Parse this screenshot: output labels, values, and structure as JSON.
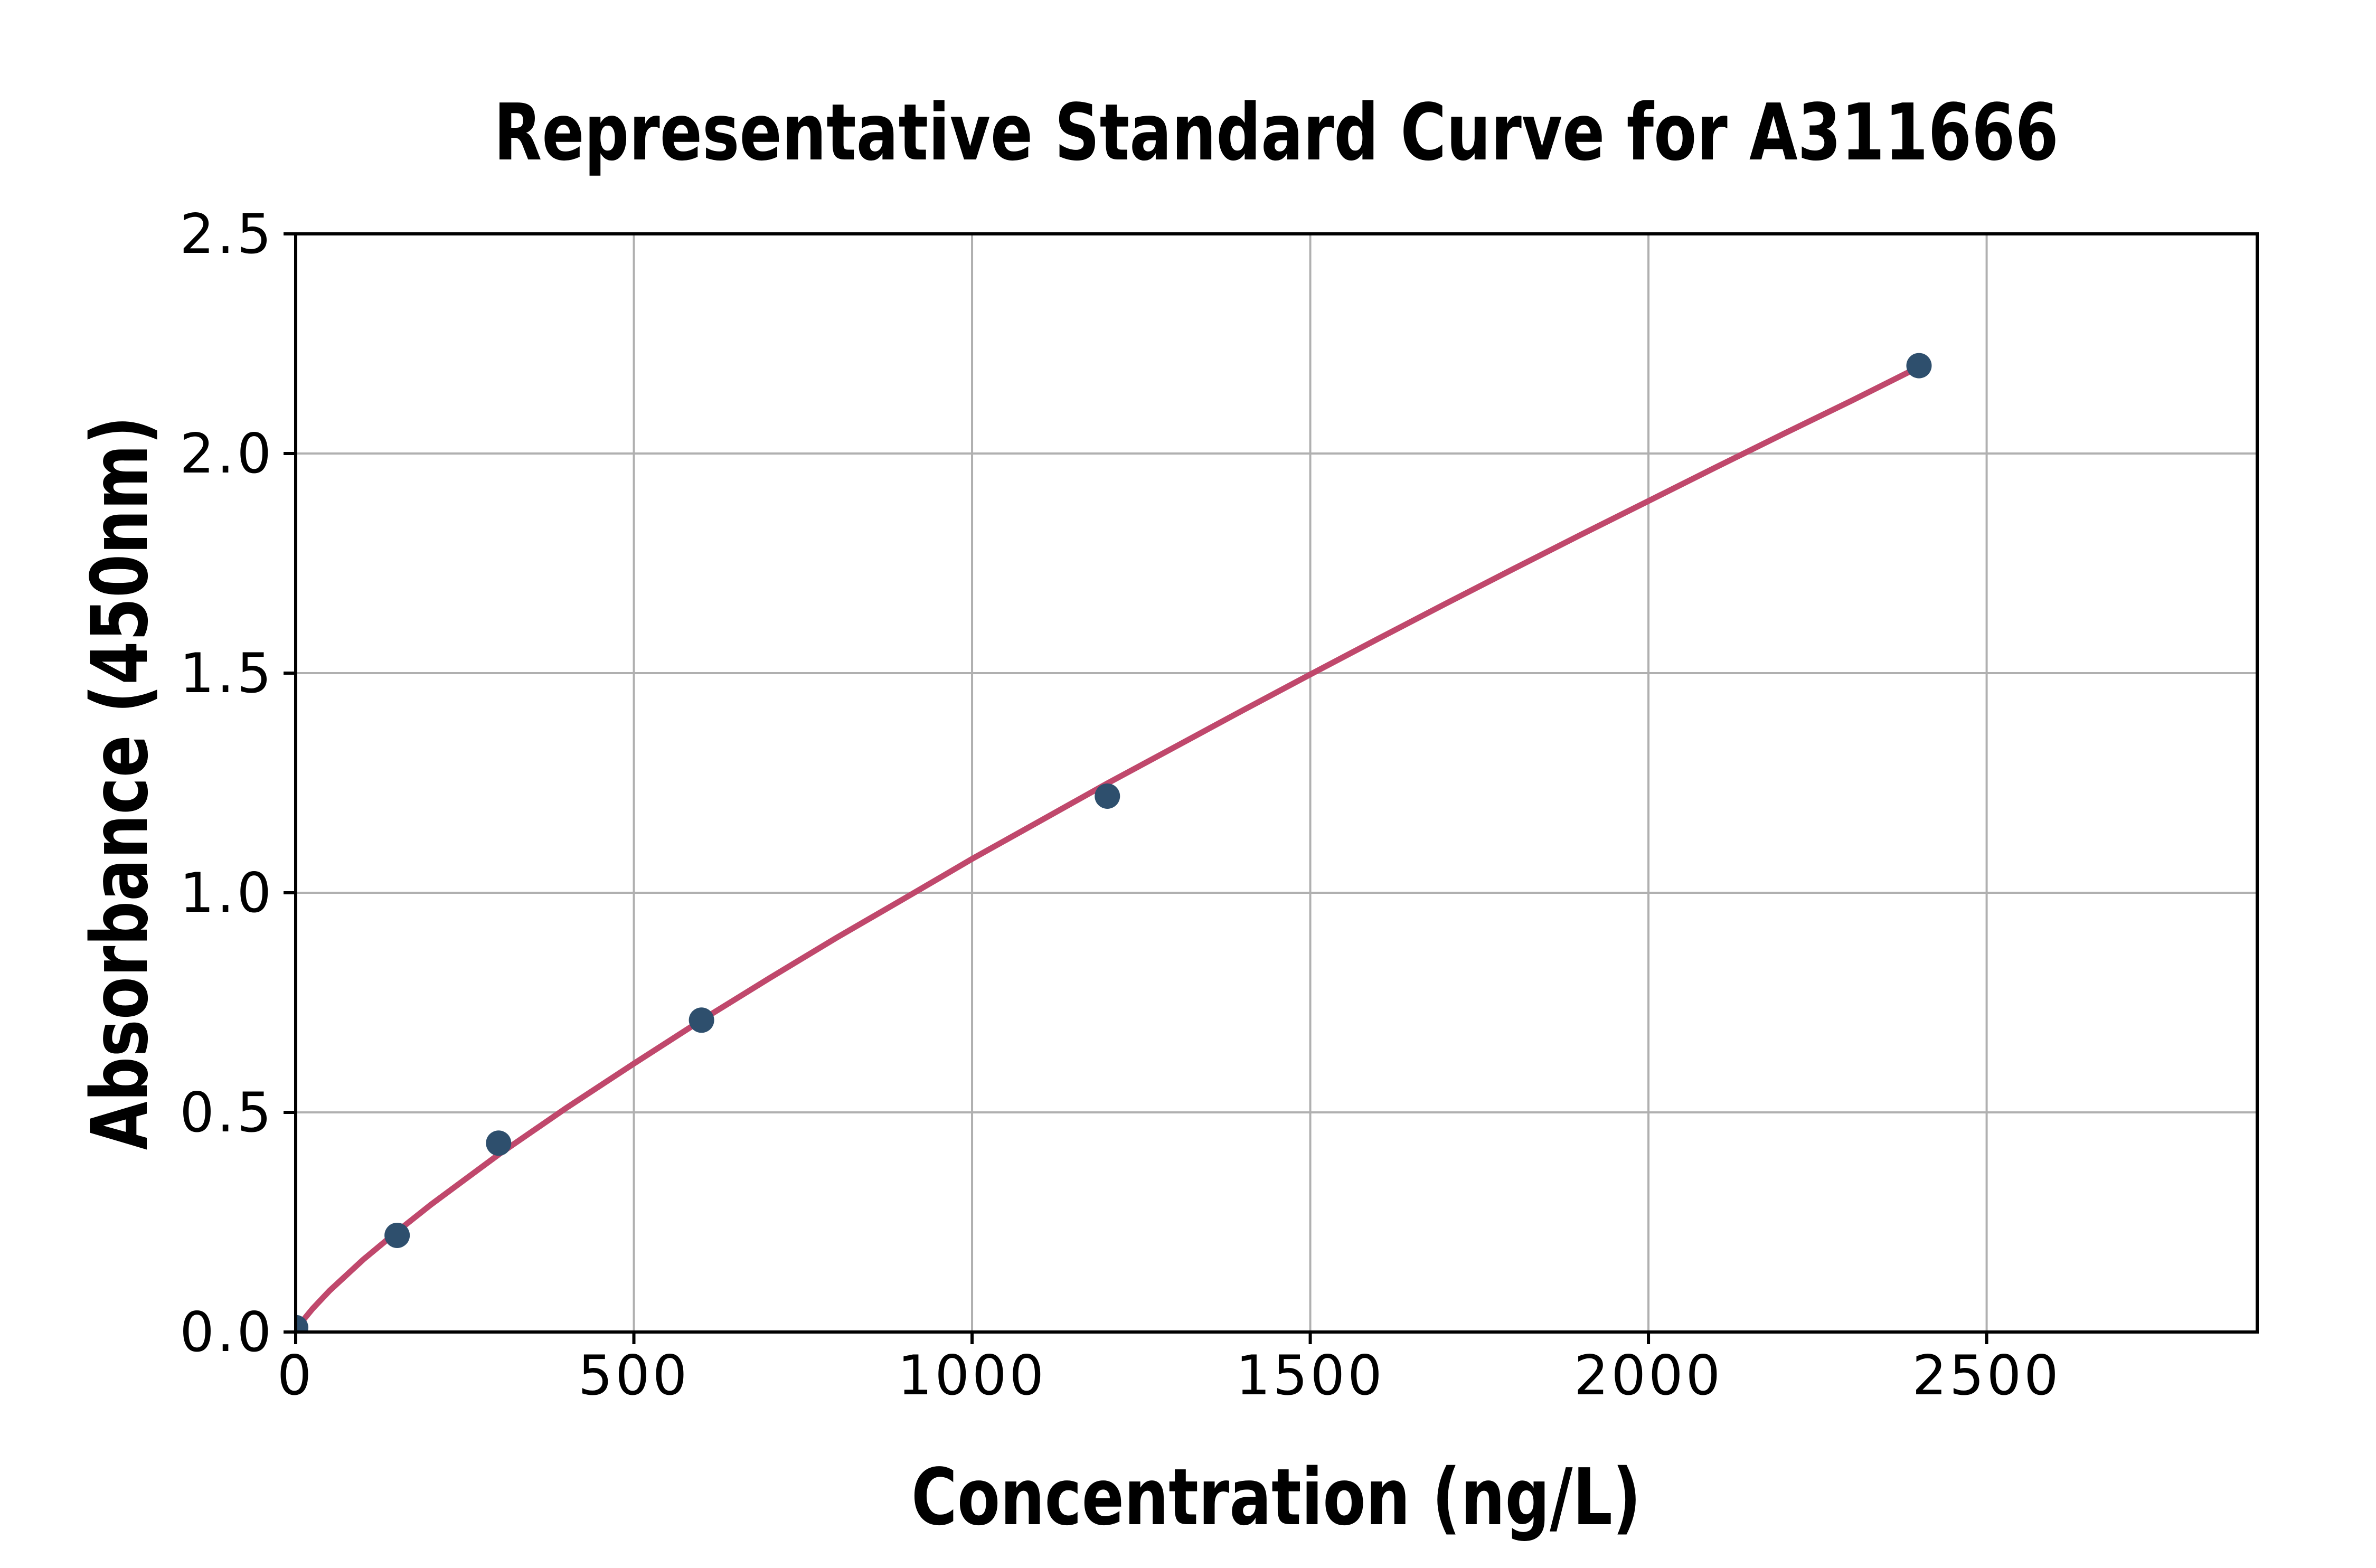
{
  "figure": {
    "background": "#FFFFFF"
  },
  "chart_data": {
    "type": "scatter",
    "title": "Representative Standard Curve for A311666",
    "xlabel": "Concentration (ng/L)",
    "ylabel": "Absorbance (450nm)",
    "xlim": [
      0,
      2900
    ],
    "ylim": [
      0,
      2.5
    ],
    "grid": true,
    "legend": "none",
    "x_ticks": {
      "values": [
        0,
        500,
        1000,
        1500,
        2000,
        2500
      ],
      "labels": [
        "0",
        "500",
        "1000",
        "1500",
        "2000",
        "2500"
      ]
    },
    "y_ticks": {
      "values": [
        0,
        0.5,
        1.0,
        1.5,
        2.0,
        2.5
      ],
      "labels": [
        "0.0",
        "0.5",
        "1.0",
        "1.5",
        "2.0",
        "2.5"
      ]
    },
    "series": [
      {
        "name": "standard-points",
        "type": "scatter",
        "color": "#2E4F6D",
        "points": [
          [
            0,
            0.01
          ],
          [
            150,
            0.22
          ],
          [
            300,
            0.43
          ],
          [
            600,
            0.71
          ],
          [
            1200,
            1.22
          ],
          [
            2400,
            2.2
          ]
        ]
      },
      {
        "name": "fitted-curve",
        "type": "line",
        "color": "#C0486C",
        "points": [
          [
            0,
            0
          ],
          [
            10,
            0.025
          ],
          [
            25,
            0.053
          ],
          [
            50,
            0.094
          ],
          [
            100,
            0.165
          ],
          [
            150,
            0.229
          ],
          [
            200,
            0.29
          ],
          [
            300,
            0.404
          ],
          [
            400,
            0.51
          ],
          [
            500,
            0.611
          ],
          [
            600,
            0.71
          ],
          [
            700,
            0.805
          ],
          [
            800,
            0.898
          ],
          [
            900,
            0.987
          ],
          [
            1000,
            1.077
          ],
          [
            1100,
            1.163
          ],
          [
            1200,
            1.249
          ],
          [
            1300,
            1.332
          ],
          [
            1400,
            1.415
          ],
          [
            1500,
            1.497
          ],
          [
            1600,
            1.578
          ],
          [
            1700,
            1.658
          ],
          [
            1800,
            1.737
          ],
          [
            1900,
            1.815
          ],
          [
            2000,
            1.892
          ],
          [
            2100,
            1.969
          ],
          [
            2200,
            2.045
          ],
          [
            2300,
            2.12
          ],
          [
            2400,
            2.197
          ]
        ]
      }
    ],
    "style": {
      "grid_color": "#B0B0B0",
      "axis_color": "#000000",
      "text_color": "#000000",
      "background": "#FFFFFF"
    }
  }
}
